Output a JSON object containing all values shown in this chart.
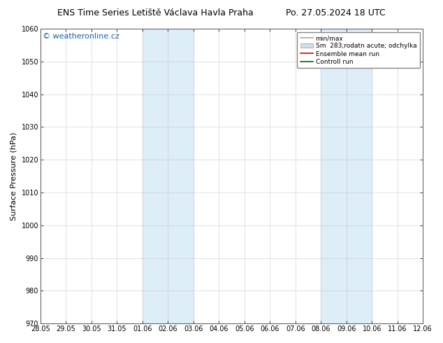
{
  "title_left": "ENS Time Series Letiště Václava Havla Praha",
  "title_right": "Po. 27.05.2024 18 UTC",
  "ylabel": "Surface Pressure (hPa)",
  "ylim": [
    970,
    1060
  ],
  "yticks": [
    970,
    980,
    990,
    1000,
    1010,
    1020,
    1030,
    1040,
    1050,
    1060
  ],
  "x_labels": [
    "28.05",
    "29.05",
    "30.05",
    "31.05",
    "01.06",
    "02.06",
    "03.06",
    "04.06",
    "05.06",
    "06.06",
    "07.06",
    "08.06",
    "09.06",
    "10.06",
    "11.06",
    "12.06"
  ],
  "x_positions": [
    0,
    1,
    2,
    3,
    4,
    5,
    6,
    7,
    8,
    9,
    10,
    11,
    12,
    13,
    14,
    15
  ],
  "shaded_bands": [
    {
      "xstart": 4,
      "xend": 6,
      "color": "#ddeef8"
    },
    {
      "xstart": 11,
      "xend": 13,
      "color": "#ddeef8"
    }
  ],
  "watermark_text": "© weatheronline.cz",
  "watermark_color": "#1a5faa",
  "bg_color": "#ffffff",
  "plot_bg_color": "#ffffff",
  "grid_color": "#aaaaaa",
  "legend_entries": [
    {
      "label": "min/max",
      "color": "#aaaaaa",
      "lw": 1.2,
      "style": "solid",
      "type": "line"
    },
    {
      "label": "Sm  283;rodatn acute; odchylka",
      "color": "#cce0f0",
      "lw": 6,
      "style": "solid",
      "type": "patch"
    },
    {
      "label": "Ensemble mean run",
      "color": "#dd0000",
      "lw": 1.2,
      "style": "solid",
      "type": "line"
    },
    {
      "label": "Controll run",
      "color": "#006600",
      "lw": 1.2,
      "style": "solid",
      "type": "line"
    }
  ],
  "tick_label_fontsize": 7,
  "axis_label_fontsize": 8,
  "title_fontsize": 9,
  "watermark_fontsize": 8
}
